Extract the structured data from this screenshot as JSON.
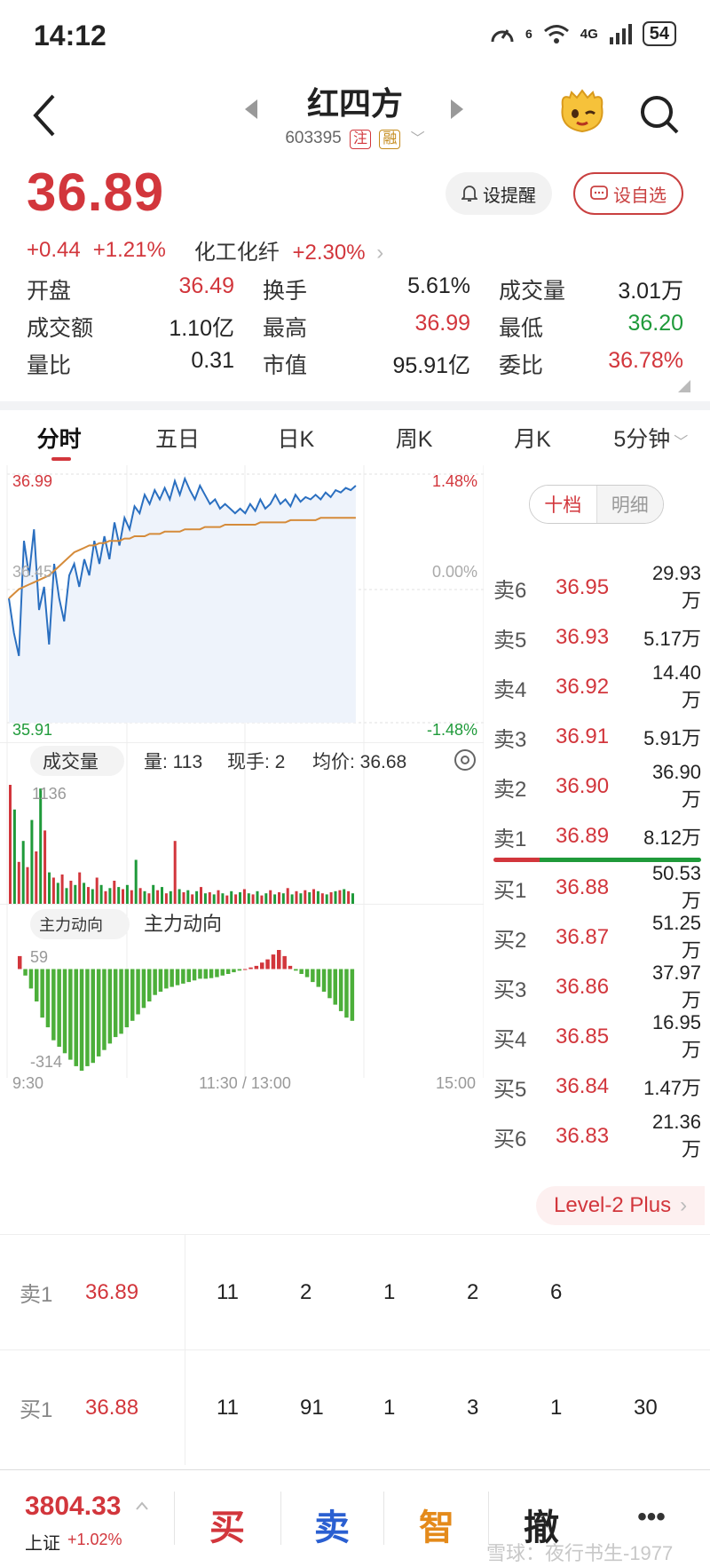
{
  "status": {
    "time": "14:12",
    "network": "4G",
    "signal_label": "6",
    "battery": "54"
  },
  "header": {
    "title": "红四方",
    "code": "603395",
    "tag_zhu": "注",
    "tag_rong": "融"
  },
  "price": {
    "last": "36.89",
    "change": "+0.44",
    "change_pct": "+1.21%",
    "sector_name": "化工化纤",
    "sector_pct": "+2.30%"
  },
  "buttons": {
    "remind": "设提醒",
    "favorite": "设自选"
  },
  "quote": [
    [
      {
        "label": "开盘",
        "value": "36.49",
        "color": "red"
      },
      {
        "label": "换手",
        "value": "5.61%",
        "color": "black"
      },
      {
        "label": "成交量",
        "value": "3.01万",
        "color": "black"
      }
    ],
    [
      {
        "label": "成交额",
        "value": "1.10亿",
        "color": "black"
      },
      {
        "label": "最高",
        "value": "36.99",
        "color": "red"
      },
      {
        "label": "最低",
        "value": "36.20",
        "color": "green"
      }
    ],
    [
      {
        "label": "量比",
        "value": "0.31",
        "color": "black"
      },
      {
        "label": "市值",
        "value": "95.91亿",
        "color": "black"
      },
      {
        "label": "委比",
        "value": "36.78%",
        "color": "red"
      }
    ]
  ],
  "tabs": [
    "分时",
    "五日",
    "日K",
    "周K",
    "月K",
    "5分钟"
  ],
  "intraday": {
    "y_high": "36.99",
    "y_mid": "36.45",
    "y_low": "35.91",
    "pct_high": "1.48%",
    "pct_mid": "0.00%",
    "pct_low": "-1.48%",
    "price_min": 35.91,
    "price_max": 36.99,
    "prices": [
      36.45,
      36.3,
      36.2,
      36.7,
      36.55,
      36.75,
      36.4,
      36.5,
      36.25,
      36.6,
      36.45,
      36.35,
      36.55,
      36.6,
      36.5,
      36.62,
      36.55,
      36.7,
      36.6,
      36.72,
      36.62,
      36.78,
      36.68,
      36.8,
      36.75,
      36.85,
      36.82,
      36.9,
      36.86,
      36.92,
      36.88,
      36.93,
      36.88,
      36.96,
      36.9,
      36.97,
      36.92,
      36.88,
      36.94,
      36.9,
      36.86,
      36.88,
      36.84,
      36.86,
      36.84,
      36.82,
      36.84,
      36.82,
      36.86,
      36.83,
      36.88,
      36.84,
      36.86,
      36.9,
      36.86,
      36.88,
      36.85,
      36.9,
      36.87,
      36.89,
      36.88,
      36.9,
      36.88,
      36.91,
      36.89,
      36.92,
      36.91,
      36.93,
      36.92,
      36.94
    ],
    "avg": [
      36.45,
      36.47,
      36.49,
      36.5,
      36.51,
      36.52,
      36.53,
      36.54,
      36.55,
      36.57,
      36.59,
      36.61,
      36.63,
      36.65,
      36.66,
      36.67,
      36.68,
      36.68,
      36.69,
      36.69,
      36.7,
      36.7,
      36.7,
      36.71,
      36.71,
      36.72,
      36.72,
      36.72,
      36.73,
      36.73,
      36.73,
      36.74,
      36.74,
      36.74,
      36.74,
      36.75,
      36.75,
      36.75,
      36.75,
      36.76,
      36.76,
      36.76,
      36.76,
      36.77,
      36.77,
      36.77,
      36.77,
      36.77,
      36.77,
      36.77,
      36.78,
      36.78,
      36.78,
      36.78,
      36.78,
      36.78,
      36.79,
      36.79,
      36.79,
      36.79,
      36.79,
      36.79,
      36.8,
      36.8,
      36.8,
      36.8,
      36.8,
      36.8,
      36.8,
      36.8
    ]
  },
  "volume": {
    "selector": "成交量",
    "vol_label": "量: 113",
    "cur_label": "现手: 2",
    "avg_label": "均价: 36.68",
    "max_label": "1136",
    "values": [
      1136,
      900,
      400,
      600,
      350,
      800,
      500,
      1100,
      700,
      300,
      250,
      200,
      280,
      150,
      220,
      180,
      300,
      200,
      160,
      140,
      250,
      180,
      120,
      150,
      220,
      160,
      140,
      180,
      130,
      420,
      150,
      120,
      100,
      180,
      130,
      160,
      100,
      120,
      600,
      140,
      110,
      130,
      90,
      120,
      160,
      100,
      110,
      90,
      130,
      100,
      80,
      120,
      90,
      110,
      140,
      100,
      90,
      120,
      80,
      100,
      130,
      90,
      110,
      100,
      150,
      90,
      120,
      100,
      130,
      110,
      140,
      120,
      100,
      90,
      110,
      120,
      130,
      140,
      120,
      100
    ],
    "colors": [
      "r",
      "g",
      "r",
      "g",
      "r",
      "g",
      "r",
      "g",
      "r",
      "g",
      "r",
      "g",
      "r",
      "g",
      "r",
      "g",
      "r",
      "g",
      "r",
      "g",
      "r",
      "g",
      "r",
      "g",
      "r",
      "g",
      "r",
      "g",
      "r",
      "g",
      "r",
      "g",
      "r",
      "g",
      "r",
      "g",
      "r",
      "g",
      "r",
      "g",
      "r",
      "g",
      "r",
      "g",
      "r",
      "g",
      "r",
      "g",
      "r",
      "g",
      "r",
      "g",
      "r",
      "g",
      "r",
      "g",
      "r",
      "g",
      "r",
      "g",
      "r",
      "g",
      "r",
      "g",
      "r",
      "g",
      "r",
      "g",
      "r",
      "g",
      "r",
      "g",
      "r",
      "g",
      "r",
      "g",
      "r",
      "g",
      "r",
      "g"
    ]
  },
  "flow": {
    "selector": "主力动向",
    "title": "主力动向",
    "max_label": "59",
    "min_label": "-314",
    "values": [
      40,
      -20,
      -60,
      -100,
      -150,
      -180,
      -220,
      -240,
      -260,
      -280,
      -300,
      -314,
      -300,
      -290,
      -270,
      -250,
      -230,
      -210,
      -200,
      -180,
      -160,
      -140,
      -120,
      -100,
      -80,
      -70,
      -60,
      -55,
      -50,
      -45,
      -40,
      -35,
      -30,
      -30,
      -28,
      -25,
      -20,
      -15,
      -10,
      -5,
      0,
      5,
      10,
      20,
      30,
      45,
      59,
      40,
      10,
      -5,
      -15,
      -25,
      -40,
      -55,
      -70,
      -90,
      -110,
      -130,
      -150,
      -160
    ]
  },
  "time_axis": {
    "start": "9:30",
    "mid": "11:30 / 13:00",
    "end": "15:00"
  },
  "book": {
    "toggle_on": "十档",
    "toggle_off": "明细",
    "asks": [
      {
        "lvl": "卖6",
        "price": "36.95",
        "vol": "29.93万"
      },
      {
        "lvl": "卖5",
        "price": "36.93",
        "vol": "5.17万"
      },
      {
        "lvl": "卖4",
        "price": "36.92",
        "vol": "14.40万"
      },
      {
        "lvl": "卖3",
        "price": "36.91",
        "vol": "5.91万"
      },
      {
        "lvl": "卖2",
        "price": "36.90",
        "vol": "36.90万"
      },
      {
        "lvl": "卖1",
        "price": "36.89",
        "vol": "8.12万"
      }
    ],
    "bids": [
      {
        "lvl": "买1",
        "price": "36.88",
        "vol": "50.53万"
      },
      {
        "lvl": "买2",
        "price": "36.87",
        "vol": "51.25万"
      },
      {
        "lvl": "买3",
        "price": "36.86",
        "vol": "37.97万"
      },
      {
        "lvl": "买4",
        "price": "36.85",
        "vol": "16.95万"
      },
      {
        "lvl": "买5",
        "price": "36.84",
        "vol": "1.47万"
      },
      {
        "lvl": "买6",
        "price": "36.83",
        "vol": "21.36万"
      }
    ],
    "level2": "Level-2 Plus"
  },
  "queue": [
    {
      "lvl": "卖1",
      "price": "36.89",
      "orders": [
        "11",
        "2",
        "1",
        "2",
        "6"
      ]
    },
    {
      "lvl": "买1",
      "price": "36.88",
      "orders": [
        "11",
        "91",
        "1",
        "3",
        "1",
        "30"
      ]
    }
  ],
  "bottom": {
    "index_value": "3804.33",
    "index_name": "上证",
    "index_change": "+1.02%",
    "buy": "买",
    "sell": "卖",
    "smart": "智",
    "cancel": "撤",
    "more": "•••",
    "watermark": "雪球：夜行书生-1977"
  },
  "colors": {
    "up": "#d2363c",
    "down": "#1f9a3a",
    "price_line": "#2a6fc0",
    "avg_line": "#d58b3a"
  }
}
